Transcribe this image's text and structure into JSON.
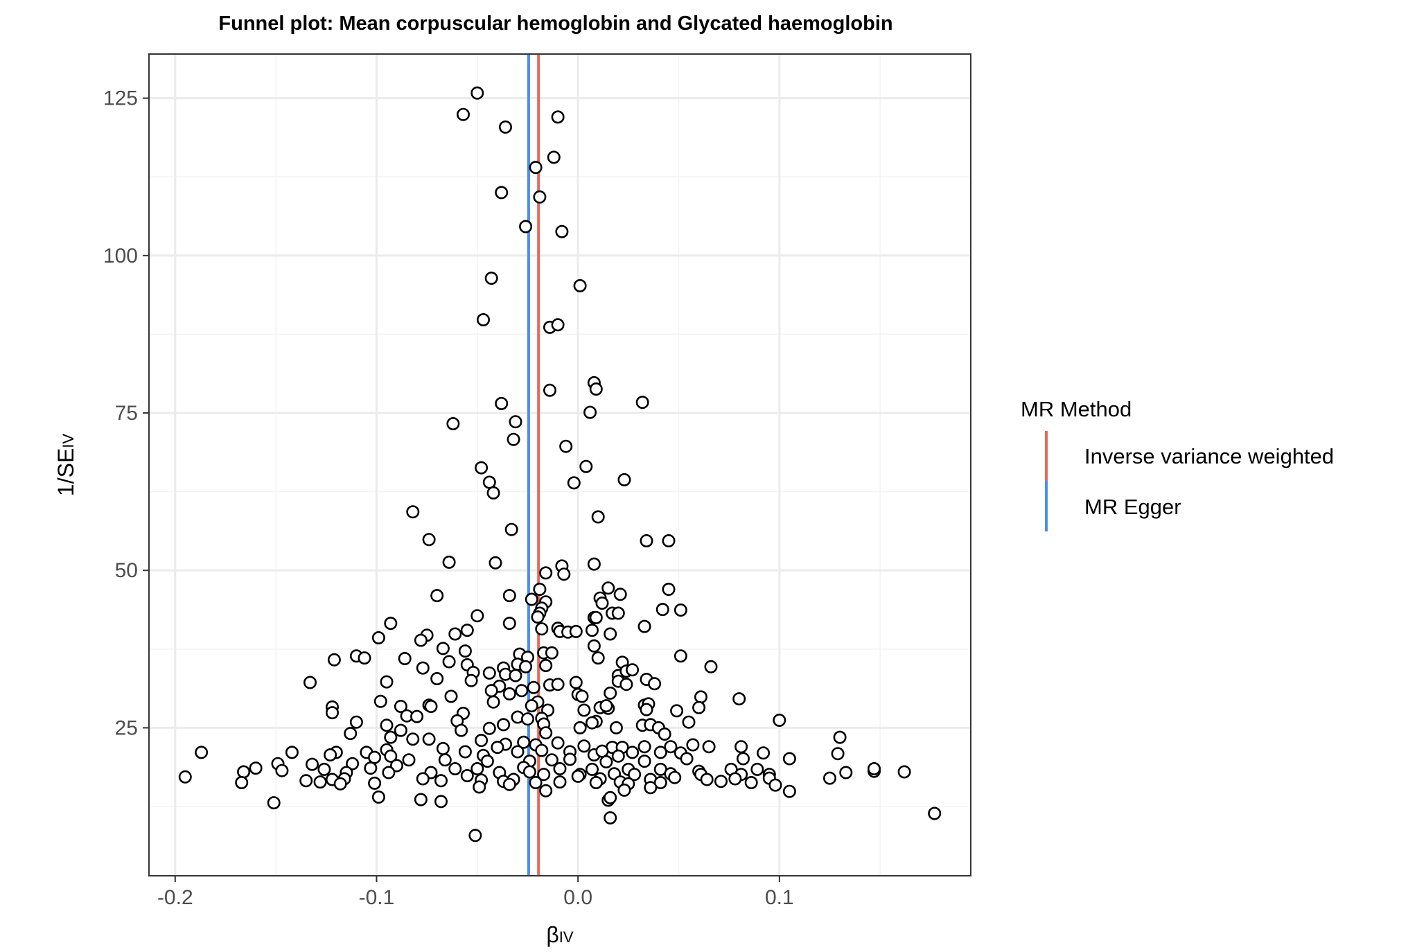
{
  "chart_data": {
    "type": "scatter",
    "title": "Funnel plot: Mean corpuscular hemoglobin and Glycated haemoglobin",
    "xlabel": "β",
    "xlabel_sub": "IV",
    "ylabel": "1/SE",
    "ylabel_sub": "IV",
    "xlim": [
      -0.213,
      0.195
    ],
    "ylim": [
      1.5,
      132
    ],
    "x_ticks": [
      -0.2,
      -0.1,
      0.0,
      0.1
    ],
    "x_tick_labels": [
      "-0.2",
      "-0.1",
      "0.0",
      "0.1"
    ],
    "y_ticks": [
      25,
      50,
      75,
      100,
      125
    ],
    "y_tick_labels": [
      "25",
      "50",
      "75",
      "100",
      "125"
    ],
    "grid": true,
    "legend": {
      "title": "MR Method",
      "placement": "right",
      "entries": [
        {
          "label": "Inverse variance weighted",
          "color": "#E16A5C"
        },
        {
          "label": "MR Egger",
          "color": "#4A8EF0"
        }
      ]
    },
    "vlines": [
      {
        "method": "Inverse variance weighted",
        "x": -0.0196,
        "color": "#E16A5C"
      },
      {
        "method": "MR Egger",
        "x": -0.0245,
        "color": "#4A8EF0"
      }
    ],
    "points": [
      [
        -0.05,
        125.8
      ],
      [
        -0.057,
        122.4
      ],
      [
        -0.036,
        120.4
      ],
      [
        -0.01,
        122.0
      ],
      [
        -0.012,
        115.6
      ],
      [
        -0.021,
        114.0
      ],
      [
        -0.038,
        110.0
      ],
      [
        -0.019,
        109.3
      ],
      [
        -0.026,
        104.6
      ],
      [
        -0.008,
        103.8
      ],
      [
        -0.043,
        96.4
      ],
      [
        0.001,
        95.2
      ],
      [
        -0.047,
        89.8
      ],
      [
        -0.014,
        88.6
      ],
      [
        -0.01,
        89.0
      ],
      [
        0.008,
        79.8
      ],
      [
        0.009,
        78.8
      ],
      [
        -0.014,
        78.6
      ],
      [
        0.032,
        76.7
      ],
      [
        -0.038,
        76.5
      ],
      [
        -0.062,
        73.3
      ],
      [
        -0.031,
        73.6
      ],
      [
        0.006,
        75.1
      ],
      [
        -0.032,
        70.8
      ],
      [
        -0.006,
        69.7
      ],
      [
        -0.048,
        66.3
      ],
      [
        0.004,
        66.5
      ],
      [
        -0.044,
        64.0
      ],
      [
        0.023,
        64.4
      ],
      [
        -0.002,
        63.9
      ],
      [
        -0.042,
        62.3
      ],
      [
        -0.082,
        59.3
      ],
      [
        0.01,
        58.5
      ],
      [
        -0.033,
        56.5
      ],
      [
        -0.074,
        54.9
      ],
      [
        0.034,
        54.7
      ],
      [
        0.045,
        54.7
      ],
      [
        -0.064,
        51.3
      ],
      [
        -0.041,
        51.2
      ],
      [
        0.008,
        51.0
      ],
      [
        -0.008,
        50.7
      ],
      [
        -0.016,
        49.6
      ],
      [
        -0.007,
        49.4
      ],
      [
        0.015,
        47.2
      ],
      [
        0.045,
        47.0
      ],
      [
        -0.019,
        47.0
      ],
      [
        0.021,
        46.2
      ],
      [
        -0.07,
        46.0
      ],
      [
        -0.034,
        46.0
      ],
      [
        -0.023,
        45.4
      ],
      [
        0.011,
        45.6
      ],
      [
        -0.016,
        45.0
      ],
      [
        0.012,
        44.8
      ],
      [
        -0.018,
        44.0
      ],
      [
        0.042,
        43.8
      ],
      [
        0.051,
        43.7
      ],
      [
        -0.019,
        43.2
      ],
      [
        0.017,
        43.2
      ],
      [
        0.02,
        43.2
      ],
      [
        -0.02,
        42.6
      ],
      [
        -0.05,
        42.8
      ],
      [
        0.008,
        42.5
      ],
      [
        0.009,
        42.5
      ],
      [
        -0.034,
        41.6
      ],
      [
        -0.093,
        41.6
      ],
      [
        0.033,
        41.1
      ],
      [
        -0.01,
        40.8
      ],
      [
        -0.018,
        40.7
      ],
      [
        -0.009,
        40.3
      ],
      [
        -0.005,
        40.2
      ],
      [
        -0.001,
        40.3
      ],
      [
        0.007,
        40.5
      ],
      [
        -0.055,
        40.5
      ],
      [
        0.016,
        39.9
      ],
      [
        -0.061,
        39.9
      ],
      [
        -0.075,
        39.7
      ],
      [
        -0.099,
        39.3
      ],
      [
        -0.078,
        38.9
      ],
      [
        0.008,
        38.0
      ],
      [
        -0.067,
        37.6
      ],
      [
        -0.056,
        37.2
      ],
      [
        -0.029,
        36.7
      ],
      [
        -0.025,
        36.2
      ],
      [
        -0.017,
        36.9
      ],
      [
        -0.013,
        36.9
      ],
      [
        0.01,
        36.1
      ],
      [
        0.051,
        36.4
      ],
      [
        -0.11,
        36.4
      ],
      [
        -0.121,
        35.8
      ],
      [
        -0.106,
        36.1
      ],
      [
        -0.086,
        36.0
      ],
      [
        -0.064,
        35.5
      ],
      [
        -0.055,
        35.0
      ],
      [
        -0.03,
        35.1
      ],
      [
        -0.037,
        34.5
      ],
      [
        -0.016,
        34.9
      ],
      [
        0.022,
        35.4
      ],
      [
        0.066,
        34.7
      ],
      [
        -0.077,
        34.5
      ],
      [
        -0.052,
        33.8
      ],
      [
        -0.036,
        33.5
      ],
      [
        -0.026,
        34.7
      ],
      [
        -0.031,
        33.3
      ],
      [
        0.02,
        33.3
      ],
      [
        0.024,
        34.0
      ],
      [
        0.027,
        34.2
      ],
      [
        0.034,
        32.7
      ],
      [
        -0.133,
        32.2
      ],
      [
        -0.095,
        32.3
      ],
      [
        -0.07,
        32.8
      ],
      [
        -0.053,
        32.5
      ],
      [
        -0.044,
        33.7
      ],
      [
        -0.014,
        31.8
      ],
      [
        -0.01,
        31.9
      ],
      [
        -0.001,
        32.2
      ],
      [
        0.02,
        32.4
      ],
      [
        0.038,
        32.0
      ],
      [
        0.024,
        31.9
      ],
      [
        -0.039,
        31.6
      ],
      [
        -0.022,
        31.4
      ],
      [
        -0.043,
        30.9
      ],
      [
        -0.063,
        30.0
      ],
      [
        -0.028,
        30.9
      ],
      [
        -0.034,
        30.4
      ],
      [
        0.0,
        30.3
      ],
      [
        0.002,
        30.0
      ],
      [
        0.016,
        30.5
      ],
      [
        0.061,
        29.9
      ],
      [
        0.08,
        29.6
      ],
      [
        -0.098,
        29.2
      ],
      [
        -0.042,
        29.1
      ],
      [
        -0.02,
        29.1
      ],
      [
        -0.023,
        28.5
      ],
      [
        0.011,
        28.2
      ],
      [
        0.015,
        28.1
      ],
      [
        0.014,
        28.5
      ],
      [
        0.033,
        28.6
      ],
      [
        0.035,
        28.8
      ],
      [
        0.06,
        28.2
      ],
      [
        -0.122,
        28.3
      ],
      [
        -0.088,
        28.4
      ],
      [
        -0.074,
        28.6
      ],
      [
        -0.073,
        28.4
      ],
      [
        -0.015,
        27.8
      ],
      [
        0.003,
        27.8
      ],
      [
        0.034,
        27.9
      ],
      [
        0.049,
        27.7
      ],
      [
        -0.122,
        27.4
      ],
      [
        -0.057,
        27.3
      ],
      [
        -0.085,
        26.9
      ],
      [
        -0.08,
        26.8
      ],
      [
        -0.03,
        26.7
      ],
      [
        -0.025,
        26.4
      ],
      [
        -0.018,
        26.5
      ],
      [
        0.009,
        26.0
      ],
      [
        0.007,
        25.8
      ],
      [
        0.055,
        25.9
      ],
      [
        0.1,
        26.2
      ],
      [
        -0.11,
        25.9
      ],
      [
        -0.095,
        25.4
      ],
      [
        -0.06,
        26.1
      ],
      [
        -0.037,
        25.5
      ],
      [
        -0.017,
        25.6
      ],
      [
        0.001,
        25.0
      ],
      [
        0.019,
        25.0
      ],
      [
        0.032,
        25.4
      ],
      [
        0.036,
        25.5
      ],
      [
        0.04,
        25.0
      ],
      [
        -0.113,
        24.1
      ],
      [
        -0.088,
        24.6
      ],
      [
        -0.058,
        24.6
      ],
      [
        -0.044,
        24.9
      ],
      [
        -0.016,
        24.2
      ],
      [
        0.043,
        24.0
      ],
      [
        0.13,
        23.5
      ],
      [
        -0.093,
        23.5
      ],
      [
        -0.082,
        23.2
      ],
      [
        -0.074,
        23.2
      ],
      [
        -0.048,
        23.0
      ],
      [
        -0.036,
        22.4
      ],
      [
        -0.027,
        22.7
      ],
      [
        -0.021,
        22.3
      ],
      [
        -0.01,
        22.6
      ],
      [
        0.003,
        22.1
      ],
      [
        0.017,
        21.9
      ],
      [
        0.022,
        21.9
      ],
      [
        0.033,
        22.0
      ],
      [
        0.046,
        22.0
      ],
      [
        0.057,
        22.3
      ],
      [
        0.065,
        22.0
      ],
      [
        0.081,
        22.0
      ],
      [
        -0.187,
        21.1
      ],
      [
        -0.142,
        21.1
      ],
      [
        -0.12,
        21.1
      ],
      [
        -0.105,
        21.1
      ],
      [
        -0.095,
        21.5
      ],
      [
        -0.067,
        21.7
      ],
      [
        -0.056,
        21.2
      ],
      [
        -0.047,
        20.6
      ],
      [
        -0.04,
        21.9
      ],
      [
        -0.03,
        21.2
      ],
      [
        -0.018,
        21.4
      ],
      [
        -0.004,
        21.2
      ],
      [
        0.008,
        20.7
      ],
      [
        0.012,
        21.3
      ],
      [
        0.02,
        20.5
      ],
      [
        0.027,
        21.1
      ],
      [
        0.041,
        21.1
      ],
      [
        0.051,
        21.0
      ],
      [
        0.092,
        21.0
      ],
      [
        0.129,
        20.9
      ],
      [
        -0.123,
        20.7
      ],
      [
        -0.101,
        20.3
      ],
      [
        -0.093,
        20.5
      ],
      [
        -0.084,
        19.9
      ],
      [
        -0.066,
        19.9
      ],
      [
        -0.045,
        19.7
      ],
      [
        -0.024,
        19.7
      ],
      [
        -0.013,
        19.9
      ],
      [
        -0.004,
        20.0
      ],
      [
        0.014,
        19.6
      ],
      [
        0.033,
        19.7
      ],
      [
        0.054,
        20.1
      ],
      [
        0.082,
        20.1
      ],
      [
        0.105,
        20.1
      ],
      [
        -0.149,
        19.3
      ],
      [
        -0.132,
        19.2
      ],
      [
        -0.112,
        19.3
      ],
      [
        -0.103,
        18.6
      ],
      [
        -0.09,
        19.0
      ],
      [
        -0.061,
        18.5
      ],
      [
        -0.05,
        18.5
      ],
      [
        -0.027,
        18.7
      ],
      [
        -0.009,
        18.5
      ],
      [
        0.007,
        18.4
      ],
      [
        0.025,
        18.4
      ],
      [
        0.041,
        18.4
      ],
      [
        0.06,
        18.1
      ],
      [
        0.076,
        18.4
      ],
      [
        0.089,
        18.4
      ],
      [
        -0.166,
        18.0
      ],
      [
        -0.16,
        18.6
      ],
      [
        -0.147,
        18.2
      ],
      [
        -0.126,
        18.4
      ],
      [
        -0.115,
        17.9
      ],
      [
        -0.094,
        17.9
      ],
      [
        -0.073,
        17.9
      ],
      [
        -0.055,
        17.4
      ],
      [
        -0.039,
        17.9
      ],
      [
        -0.024,
        18.0
      ],
      [
        -0.017,
        17.6
      ],
      [
        0.001,
        17.6
      ],
      [
        0.018,
        17.7
      ],
      [
        0.028,
        17.6
      ],
      [
        0.046,
        17.7
      ],
      [
        0.061,
        17.6
      ],
      [
        0.081,
        17.6
      ],
      [
        0.095,
        17.6
      ],
      [
        0.133,
        17.9
      ],
      [
        0.147,
        18.1
      ],
      [
        0.162,
        18.0
      ],
      [
        -0.195,
        17.2
      ],
      [
        -0.135,
        16.6
      ],
      [
        -0.122,
        16.8
      ],
      [
        -0.116,
        16.9
      ],
      [
        -0.077,
        16.9
      ],
      [
        -0.068,
        16.6
      ],
      [
        -0.048,
        16.7
      ],
      [
        -0.037,
        16.5
      ],
      [
        -0.032,
        16.8
      ],
      [
        -0.021,
        16.3
      ],
      [
        0.0,
        17.3
      ],
      [
        0.011,
        16.9
      ],
      [
        0.021,
        16.4
      ],
      [
        0.036,
        16.8
      ],
      [
        0.048,
        17.1
      ],
      [
        0.064,
        16.8
      ],
      [
        0.078,
        16.9
      ],
      [
        0.095,
        17.0
      ],
      [
        0.125,
        17.0
      ],
      [
        0.147,
        18.5
      ],
      [
        -0.167,
        16.3
      ],
      [
        -0.128,
        16.4
      ],
      [
        -0.118,
        16.1
      ],
      [
        -0.101,
        16.2
      ],
      [
        -0.034,
        16.0
      ],
      [
        -0.009,
        16.4
      ],
      [
        0.009,
        16.3
      ],
      [
        0.025,
        16.1
      ],
      [
        0.041,
        16.3
      ],
      [
        0.071,
        16.5
      ],
      [
        0.086,
        16.3
      ],
      [
        0.098,
        15.9
      ],
      [
        -0.049,
        15.6
      ],
      [
        -0.016,
        15.0
      ],
      [
        0.023,
        15.1
      ],
      [
        0.036,
        15.5
      ],
      [
        0.105,
        14.9
      ],
      [
        -0.099,
        14.0
      ],
      [
        -0.078,
        13.6
      ],
      [
        -0.068,
        13.3
      ],
      [
        0.015,
        13.5
      ],
      [
        0.016,
        13.9
      ],
      [
        -0.151,
        13.1
      ],
      [
        0.177,
        11.4
      ],
      [
        0.016,
        10.7
      ],
      [
        -0.051,
        7.9
      ]
    ]
  }
}
